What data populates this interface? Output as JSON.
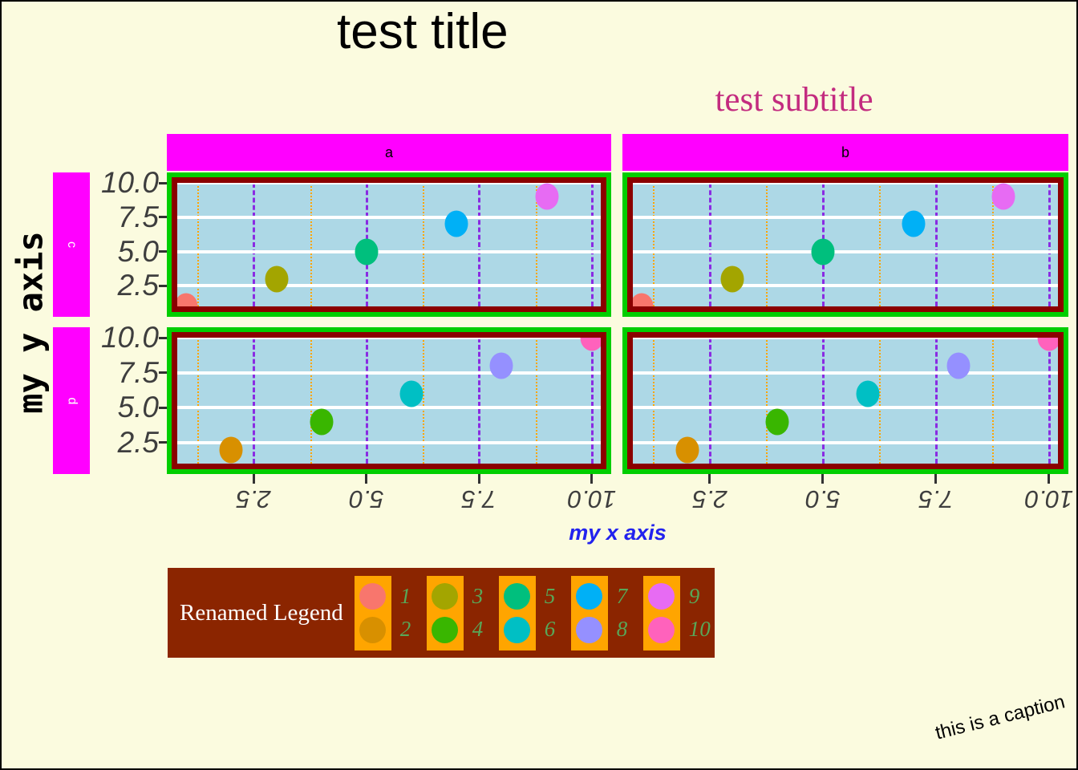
{
  "chart_data": {
    "type": "scatter",
    "title": "test title",
    "subtitle": "test subtitle",
    "xlabel": "my x axis",
    "ylabel": "my y axis",
    "caption": "this is a caption",
    "legend_title": "Renamed Legend",
    "facet_cols": [
      "a",
      "b"
    ],
    "facet_rows": [
      "c",
      "d"
    ],
    "x_range": [
      0.8,
      10.2
    ],
    "y_range": [
      1.0,
      10.0
    ],
    "x_ticks": [
      {
        "v": 2.5,
        "label": "2.5"
      },
      {
        "v": 5.0,
        "label": "5.0"
      },
      {
        "v": 7.5,
        "label": "7.5"
      },
      {
        "v": 10.0,
        "label": "10.0"
      }
    ],
    "y_ticks": [
      {
        "v": 10.0,
        "label": "10.0"
      },
      {
        "v": 7.5,
        "label": "7.5"
      },
      {
        "v": 5.0,
        "label": "5.0"
      },
      {
        "v": 2.5,
        "label": "2.5"
      }
    ],
    "x_minor": [
      1.25,
      3.75,
      6.25,
      8.75
    ],
    "points": [
      {
        "label": "1",
        "x": 1,
        "y": 1,
        "facet_row": "c",
        "color": "#F8766D"
      },
      {
        "label": "2",
        "x": 2,
        "y": 2,
        "facet_row": "d",
        "color": "#D89000"
      },
      {
        "label": "3",
        "x": 3,
        "y": 3,
        "facet_row": "c",
        "color": "#A3A500"
      },
      {
        "label": "4",
        "x": 4,
        "y": 4,
        "facet_row": "d",
        "color": "#39B600"
      },
      {
        "label": "5",
        "x": 5,
        "y": 5,
        "facet_row": "c",
        "color": "#00BF7D"
      },
      {
        "label": "6",
        "x": 6,
        "y": 6,
        "facet_row": "d",
        "color": "#00BFC4"
      },
      {
        "label": "7",
        "x": 7,
        "y": 7,
        "facet_row": "c",
        "color": "#00B0F6"
      },
      {
        "label": "8",
        "x": 8,
        "y": 8,
        "facet_row": "d",
        "color": "#9590FF"
      },
      {
        "label": "9",
        "x": 9,
        "y": 9,
        "facet_row": "c",
        "color": "#E76BF3"
      },
      {
        "label": "10",
        "x": 10,
        "y": 10,
        "facet_row": "d",
        "color": "#FF62BC"
      }
    ],
    "legend_position": "bottom-left",
    "grid": {
      "major_h": "solid-white",
      "major_v": "dashed",
      "minor_v": "dotted"
    }
  },
  "theme": {
    "background": "#FBFBDF",
    "panel_background": "#ADD8E6",
    "panel_border": "#8B0000",
    "panel_outline_green": "#00CE00",
    "strip_background": "#FF00FF",
    "strip_text_top": "#000000",
    "strip_text_left": "#FFFFFF",
    "grid_major_horizontal": "#FFFFFF",
    "grid_major_vertical": "#8A2BE2",
    "grid_minor_vertical": "#FFA500",
    "axis_text": "#3E3E3E",
    "axis_tick": "#333333",
    "x_axis_title": "#2222EE",
    "subtitle_color": "#C32B7F",
    "title_color": "#000000",
    "legend_background": "#8B2500",
    "legend_key": "#FFA500",
    "legend_label": "#58A758",
    "legend_title_color": "#FFFFFF"
  }
}
